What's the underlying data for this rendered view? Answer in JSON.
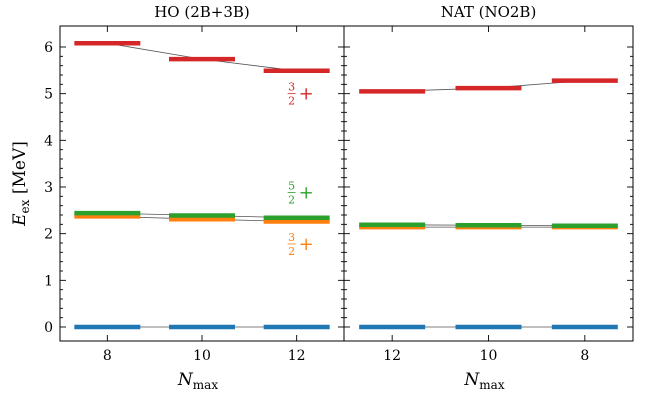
{
  "chart_data": {
    "type": "level-scheme",
    "ylabel": "E_ex [MeV]",
    "ylim": [
      -0.3,
      6.45
    ],
    "yticks": [
      "0",
      "1",
      "2",
      "3",
      "4",
      "5",
      "6"
    ],
    "xlabel": "N_max",
    "grid": false,
    "colors": {
      "ground": "#1f77b4",
      "32_lower": "#ff7f0e",
      "52": "#2ca02c",
      "32_upper": "#d62728"
    },
    "panels": [
      {
        "title": "HO (2B+3B)",
        "categories": [
          "8",
          "10",
          "12"
        ],
        "series": [
          {
            "color_key": "ground",
            "values": [
              0,
              0,
              0
            ]
          },
          {
            "color_key": "32_lower",
            "values": [
              2.37,
              2.31,
              2.26
            ]
          },
          {
            "color_key": "52",
            "values": [
              2.44,
              2.39,
              2.34
            ]
          },
          {
            "color_key": "32_upper",
            "values": [
              6.08,
              5.74,
              5.49
            ]
          }
        ],
        "annotations": [
          {
            "num": "3",
            "den": "2",
            "sign": "+",
            "color_key": "32_upper",
            "y": 5.0
          },
          {
            "num": "5",
            "den": "2",
            "sign": "+",
            "color_key": "52",
            "y": 2.88
          },
          {
            "num": "3",
            "den": "2",
            "sign": "+",
            "color_key": "32_lower",
            "y": 1.78
          }
        ]
      },
      {
        "title": "NAT (NO2B)",
        "categories": [
          "12",
          "10",
          "8"
        ],
        "series": [
          {
            "color_key": "ground",
            "values": [
              0,
              0,
              0
            ]
          },
          {
            "color_key": "32_lower",
            "values": [
              2.14,
              2.14,
              2.14
            ]
          },
          {
            "color_key": "52",
            "values": [
              2.19,
              2.18,
              2.17
            ]
          },
          {
            "color_key": "32_upper",
            "values": [
              5.05,
              5.12,
              5.28
            ]
          }
        ],
        "annotations": []
      }
    ]
  }
}
